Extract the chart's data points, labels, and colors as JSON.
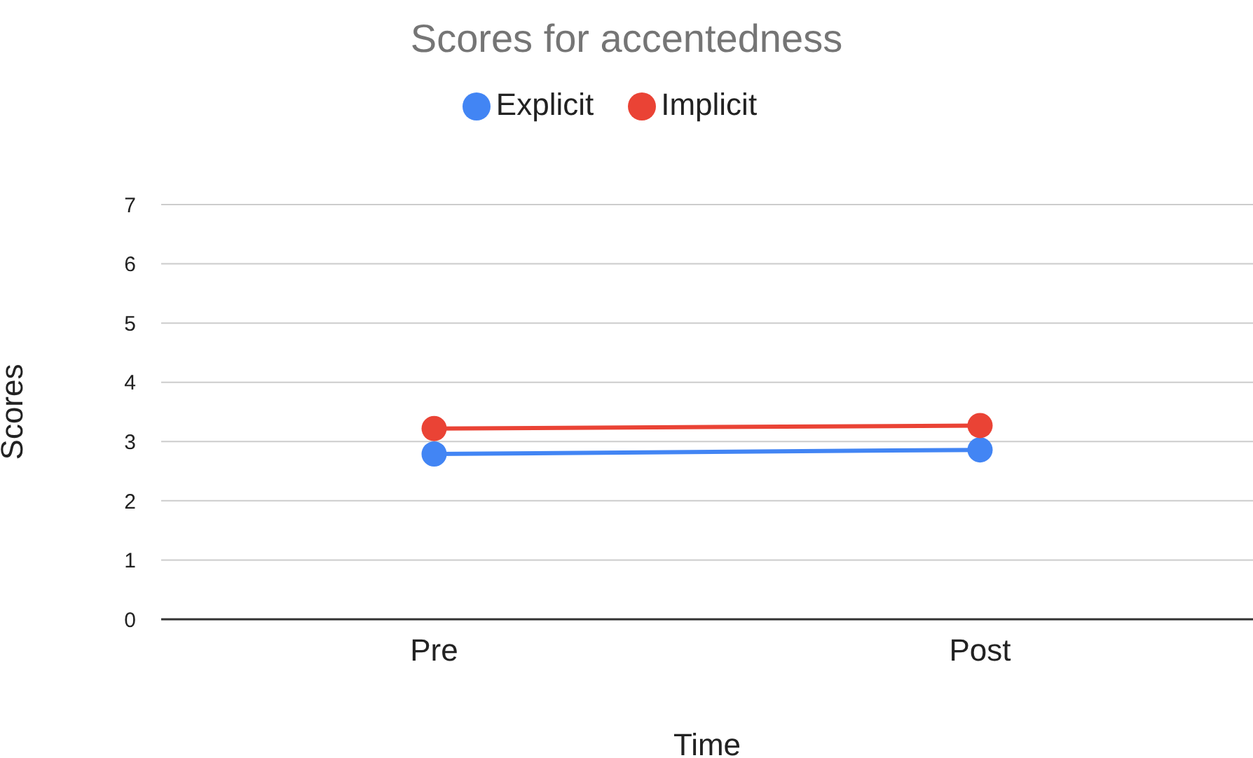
{
  "chart_data": {
    "type": "line",
    "title": "Scores for accentedness",
    "xlabel": "Time",
    "ylabel": "Scores",
    "categories": [
      "Pre",
      "Post"
    ],
    "series": [
      {
        "name": "Explicit",
        "color": "#4285f4",
        "values": [
          2.79,
          2.86
        ]
      },
      {
        "name": "Implicit",
        "color": "#ea4335",
        "values": [
          3.22,
          3.27
        ]
      }
    ],
    "ylim": [
      0,
      7
    ],
    "yticks": [
      0,
      1,
      2,
      3,
      4,
      5,
      6,
      7
    ],
    "grid": "y",
    "legend": "top",
    "marker": "circle",
    "line_style": "solid"
  }
}
